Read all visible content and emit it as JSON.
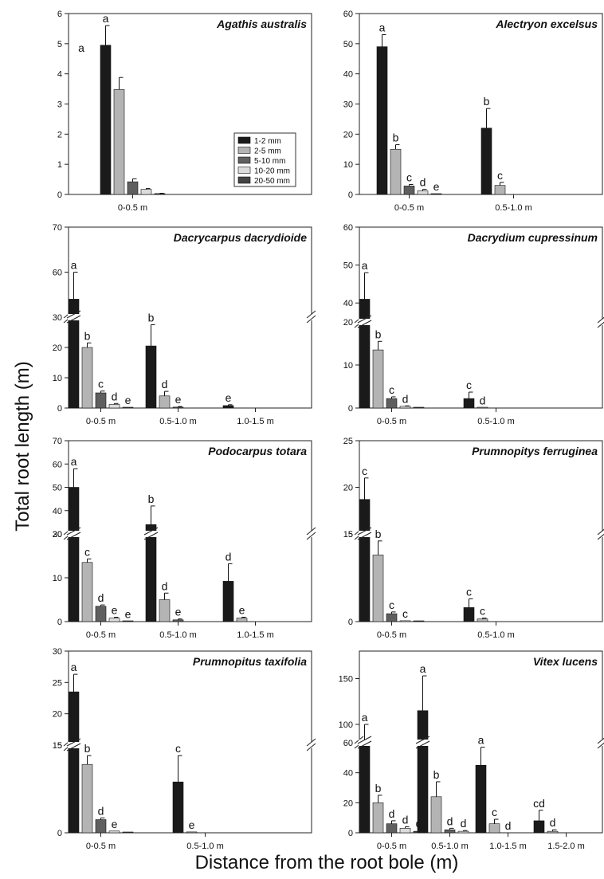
{
  "figure": {
    "ylabel": "Total root length (m)",
    "xlabel": "Distance from the root bole (m)"
  },
  "legend": {
    "entries": [
      {
        "label": "1-2 mm",
        "color": "#1a1a1a"
      },
      {
        "label": "2-5 mm",
        "color": "#b4b4b4"
      },
      {
        "label": "5-10 mm",
        "color": "#5f5f5f"
      },
      {
        "label": "10-20 mm",
        "color": "#dcdcdc"
      },
      {
        "label": "20-50 mm",
        "color": "#444444"
      }
    ]
  },
  "chart_data": [
    {
      "type": "bar",
      "title": "Agathis australis",
      "categories": [
        "0-0.5 m"
      ],
      "ylim": [
        0,
        6
      ],
      "yticks": [
        0,
        1,
        2,
        3,
        4,
        5,
        6
      ],
      "series": [
        {
          "name": "1-2 mm",
          "values": [
            4.95
          ],
          "errors": [
            0.65
          ],
          "letters": [
            "a"
          ]
        },
        {
          "name": "2-5 mm",
          "values": [
            3.48
          ],
          "errors": [
            0.4
          ],
          "letters": [
            ""
          ]
        },
        {
          "name": "5-10 mm",
          "values": [
            0.42
          ],
          "errors": [
            0.1
          ],
          "letters": [
            ""
          ]
        },
        {
          "name": "10-20 mm",
          "values": [
            0.17
          ],
          "errors": [
            0.03
          ],
          "letters": [
            ""
          ]
        },
        {
          "name": "20-50 mm",
          "values": [
            0.03
          ],
          "errors": [
            0.01
          ],
          "letters": [
            ""
          ]
        }
      ],
      "extra_labels": [
        {
          "text": "a"
        }
      ]
    },
    {
      "type": "bar",
      "title": "Alectryon excelsus",
      "categories": [
        "0-0.5 m",
        "0.5-1.0 m"
      ],
      "ylim": [
        0,
        60
      ],
      "yticks": [
        0,
        10,
        20,
        30,
        40,
        50,
        60
      ],
      "series": [
        {
          "name": "1-2 mm",
          "values": [
            49,
            22
          ],
          "errors": [
            4,
            6.5
          ],
          "letters": [
            "a",
            "b"
          ]
        },
        {
          "name": "2-5 mm",
          "values": [
            15,
            3
          ],
          "errors": [
            1.5,
            1
          ],
          "letters": [
            "b",
            "c"
          ]
        },
        {
          "name": "5-10 mm",
          "values": [
            2.8,
            0
          ],
          "errors": [
            0.5,
            0
          ],
          "letters": [
            "c",
            ""
          ]
        },
        {
          "name": "10-20 mm",
          "values": [
            1.2,
            0
          ],
          "errors": [
            0.5,
            0
          ],
          "letters": [
            "d",
            ""
          ]
        },
        {
          "name": "20-50 mm",
          "values": [
            0.2,
            0
          ],
          "errors": [
            0,
            0
          ],
          "letters": [
            "e",
            ""
          ]
        }
      ]
    },
    {
      "type": "bar",
      "title": "Dacrycarpus dacrydioide",
      "categories": [
        "0-0.5 m",
        "0.5-1.0 m",
        "1.0-1.5 m"
      ],
      "broken_axis": {
        "lower": [
          0,
          30
        ],
        "upper": [
          50,
          70
        ]
      },
      "yticks_lower": [
        0,
        10,
        20,
        30
      ],
      "yticks_lower_labels": [
        "0",
        "10",
        "20",
        "30"
      ],
      "yticks_upper": [
        50,
        60,
        70
      ],
      "yticks_upper_labels": [
        "",
        "60",
        "70"
      ],
      "series": [
        {
          "name": "1-2 mm",
          "values": [
            54,
            20.5,
            0.8
          ],
          "errors": [
            6,
            7,
            0.3
          ],
          "letters": [
            "a",
            "b",
            "e"
          ]
        },
        {
          "name": "2-5 mm",
          "values": [
            20,
            4,
            0
          ],
          "errors": [
            1.5,
            1.5,
            0
          ],
          "letters": [
            "b",
            "d",
            ""
          ]
        },
        {
          "name": "5-10 mm",
          "values": [
            5,
            0.3,
            0
          ],
          "errors": [
            0.6,
            0.2,
            0
          ],
          "letters": [
            "c",
            "e",
            ""
          ]
        },
        {
          "name": "10-20 mm",
          "values": [
            1.2,
            0,
            0
          ],
          "errors": [
            0.3,
            0,
            0
          ],
          "letters": [
            "d",
            "",
            ""
          ]
        },
        {
          "name": "20-50 mm",
          "values": [
            0.2,
            0,
            0
          ],
          "errors": [
            0,
            0,
            0
          ],
          "letters": [
            "e",
            "",
            ""
          ]
        }
      ]
    },
    {
      "type": "bar",
      "title": "Dacrydium cupressinum",
      "categories": [
        "0-0.5 m",
        "0.5-1.0 m"
      ],
      "broken_axis": {
        "lower": [
          0,
          20
        ],
        "upper": [
          35,
          60
        ]
      },
      "yticks_lower": [
        0,
        10,
        20
      ],
      "yticks_lower_labels": [
        "0",
        "10",
        "20"
      ],
      "yticks_upper": [
        40,
        50,
        60
      ],
      "yticks_upper_labels": [
        "40",
        "50",
        "60"
      ],
      "series": [
        {
          "name": "1-2 mm",
          "values": [
            41,
            2.2
          ],
          "errors": [
            7,
            1.5
          ],
          "letters": [
            "a",
            "c"
          ]
        },
        {
          "name": "2-5 mm",
          "values": [
            13.5,
            0.1
          ],
          "errors": [
            2,
            0
          ],
          "letters": [
            "b",
            "d"
          ]
        },
        {
          "name": "5-10 mm",
          "values": [
            2.2,
            0
          ],
          "errors": [
            0.4,
            0
          ],
          "letters": [
            "c",
            ""
          ]
        },
        {
          "name": "10-20 mm",
          "values": [
            0.4,
            0
          ],
          "errors": [
            0.1,
            0
          ],
          "letters": [
            "d",
            ""
          ]
        },
        {
          "name": "20-50 mm",
          "values": [
            0.1,
            0
          ],
          "errors": [
            0,
            0
          ],
          "letters": [
            "",
            ""
          ]
        }
      ]
    },
    {
      "type": "bar",
      "title": "Podocarpus totara",
      "categories": [
        "0-0.5 m",
        "0.5-1.0 m",
        "1.0-1.5 m"
      ],
      "broken_axis": {
        "lower": [
          0,
          20
        ],
        "upper": [
          30,
          70
        ]
      },
      "yticks_lower": [
        0,
        10,
        20
      ],
      "yticks_lower_labels": [
        "0",
        "10",
        "20"
      ],
      "yticks_upper": [
        30,
        40,
        50,
        60,
        70
      ],
      "yticks_upper_labels": [
        "30",
        "40",
        "50",
        "60",
        "70"
      ],
      "series": [
        {
          "name": "1-2 mm",
          "values": [
            50,
            34,
            9.2
          ],
          "errors": [
            8,
            8,
            4
          ],
          "letters": [
            "a",
            "b",
            "d"
          ]
        },
        {
          "name": "2-5 mm",
          "values": [
            13.5,
            5,
            0.8
          ],
          "errors": [
            0.8,
            1.5,
            0.2
          ],
          "letters": [
            "c",
            "d",
            "e"
          ]
        },
        {
          "name": "5-10 mm",
          "values": [
            3.5,
            0.4,
            0
          ],
          "errors": [
            0.3,
            0.2,
            0
          ],
          "letters": [
            "d",
            "e",
            ""
          ]
        },
        {
          "name": "10-20 mm",
          "values": [
            0.8,
            0,
            0
          ],
          "errors": [
            0.2,
            0,
            0
          ],
          "letters": [
            "e",
            "",
            ""
          ]
        },
        {
          "name": "20-50 mm",
          "values": [
            0.1,
            0,
            0
          ],
          "errors": [
            0,
            0,
            0
          ],
          "letters": [
            "e",
            "",
            ""
          ]
        }
      ]
    },
    {
      "type": "bar",
      "title": "Prumnopitys ferruginea",
      "categories": [
        "0-0.5 m",
        "0.5-1.0 m"
      ],
      "broken_axis": {
        "lower": [
          0,
          5
        ],
        "upper": [
          15,
          25
        ]
      },
      "yticks_lower": [
        0,
        5
      ],
      "yticks_lower_labels": [
        "0",
        "5"
      ],
      "yticks_upper": [
        15,
        20,
        25
      ],
      "yticks_upper_labels": [
        "15",
        "20",
        "25"
      ],
      "series": [
        {
          "name": "1-2 mm",
          "values": [
            18.7,
            0.8
          ],
          "errors": [
            2.3,
            0.5
          ],
          "letters": [
            "c",
            "c"
          ]
        },
        {
          "name": "2-5 mm",
          "values": [
            3.8,
            0.15
          ],
          "errors": [
            0.8,
            0.05
          ],
          "letters": [
            "b",
            "c"
          ]
        },
        {
          "name": "5-10 mm",
          "values": [
            0.45,
            0
          ],
          "errors": [
            0.1,
            0
          ],
          "letters": [
            "c",
            ""
          ]
        },
        {
          "name": "10-20 mm",
          "values": [
            0.05,
            0
          ],
          "errors": [
            0,
            0
          ],
          "letters": [
            "c",
            ""
          ]
        },
        {
          "name": "20-50 mm",
          "values": [
            0.01,
            0
          ],
          "errors": [
            0,
            0
          ],
          "letters": [
            "",
            ""
          ]
        }
      ]
    },
    {
      "type": "bar",
      "title": "Prumnopitus taxifolia",
      "categories": [
        "0-0.5 m",
        "0.5-1.0 m"
      ],
      "broken_axis": {
        "lower": [
          0,
          5
        ],
        "upper": [
          15,
          30
        ]
      },
      "yticks_lower": [
        0,
        5
      ],
      "yticks_lower_labels": [
        "0",
        "5"
      ],
      "yticks_upper": [
        15,
        20,
        25,
        30
      ],
      "yticks_upper_labels": [
        "15",
        "20",
        "25",
        "30"
      ],
      "series": [
        {
          "name": "1-2 mm",
          "values": [
            23.5,
            2.9
          ],
          "errors": [
            2.8,
            1.5
          ],
          "letters": [
            "a",
            "c"
          ]
        },
        {
          "name": "2-5 mm",
          "values": [
            3.9,
            0.05
          ],
          "errors": [
            0.5,
            0
          ],
          "letters": [
            "b",
            "e"
          ]
        },
        {
          "name": "5-10 mm",
          "values": [
            0.75,
            0
          ],
          "errors": [
            0.1,
            0
          ],
          "letters": [
            "d",
            ""
          ]
        },
        {
          "name": "10-20 mm",
          "values": [
            0.1,
            0
          ],
          "errors": [
            0,
            0
          ],
          "letters": [
            "e",
            ""
          ]
        },
        {
          "name": "20-50 mm",
          "values": [
            0.02,
            0
          ],
          "errors": [
            0,
            0
          ],
          "letters": [
            "",
            ""
          ]
        }
      ]
    },
    {
      "type": "bar",
      "title": "Vitex lucens",
      "categories": [
        "0-0.5 m",
        "0.5-1.0 m",
        "1.0-1.5 m",
        "1.5-2.0 m"
      ],
      "broken_axis": {
        "lower": [
          0,
          60
        ],
        "upper": [
          80,
          180
        ]
      },
      "yticks_lower": [
        0,
        20,
        40,
        60
      ],
      "yticks_lower_labels": [
        "0",
        "20",
        "40",
        "60"
      ],
      "yticks_upper": [
        100,
        150
      ],
      "yticks_upper_labels": [
        "100",
        "150"
      ],
      "series": [
        {
          "name": "1-2 mm",
          "values": [
            83,
            115,
            45,
            8
          ],
          "errors": [
            17,
            38,
            12,
            7
          ],
          "letters": [
            "a",
            "a",
            "a",
            "cd"
          ]
        },
        {
          "name": "2-5 mm",
          "values": [
            20,
            24,
            6,
            1
          ],
          "errors": [
            5,
            10,
            3,
            1
          ],
          "letters": [
            "b",
            "b",
            "c",
            "d"
          ]
        },
        {
          "name": "5-10 mm",
          "values": [
            6,
            2,
            0,
            0
          ],
          "errors": [
            2,
            1,
            0,
            0
          ],
          "letters": [
            "d",
            "d",
            "d",
            ""
          ]
        },
        {
          "name": "10-20 mm",
          "values": [
            3,
            1,
            0,
            0
          ],
          "errors": [
            1,
            0.5,
            0,
            0
          ],
          "letters": [
            "d",
            "d",
            "",
            ""
          ]
        },
        {
          "name": "20-50 mm",
          "values": [
            1,
            0,
            0,
            0
          ],
          "errors": [
            0.5,
            0,
            0,
            0
          ],
          "letters": [
            "d",
            "",
            "",
            ""
          ]
        }
      ]
    }
  ]
}
